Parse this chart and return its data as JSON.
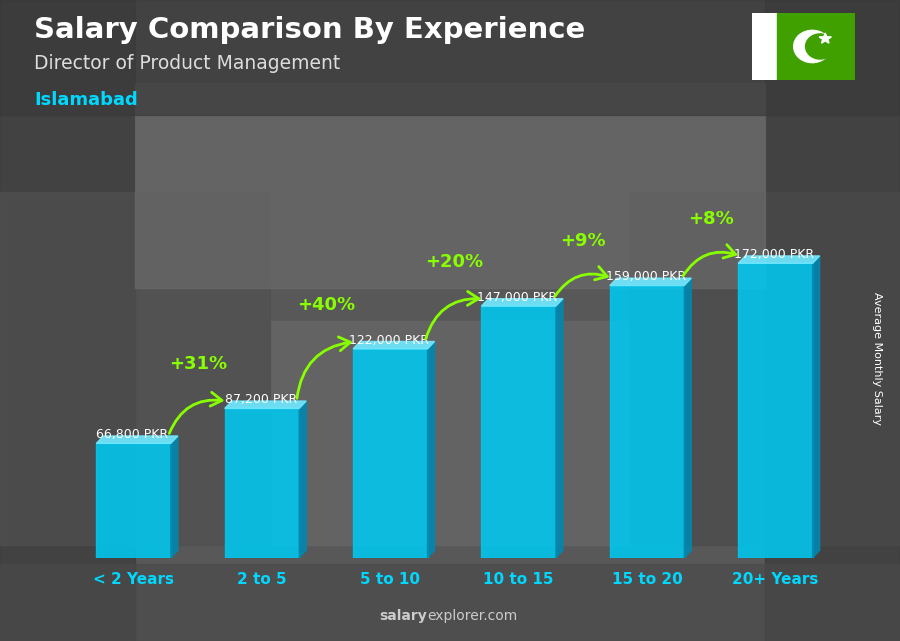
{
  "title": "Salary Comparison By Experience",
  "subtitle": "Director of Product Management",
  "city": "Islamabad",
  "ylabel": "Average Monthly Salary",
  "watermark_salary": "salary",
  "watermark_explorer": "explorer",
  "watermark_com": ".com",
  "categories": [
    "< 2 Years",
    "2 to 5",
    "5 to 10",
    "10 to 15",
    "15 to 20",
    "20+ Years"
  ],
  "values": [
    66800,
    87200,
    122000,
    147000,
    159000,
    172000
  ],
  "labels": [
    "66,800 PKR",
    "87,200 PKR",
    "122,000 PKR",
    "147,000 PKR",
    "159,000 PKR",
    "172,000 PKR"
  ],
  "pct_labels": [
    "+31%",
    "+40%",
    "+20%",
    "+9%",
    "+8%"
  ],
  "bar_color_face": "#00c8f0",
  "bar_color_top": "#70e8ff",
  "bar_color_side": "#0088b0",
  "bg_color": "#606060",
  "title_color": "#ffffff",
  "subtitle_color": "#dddddd",
  "city_color": "#00d8ff",
  "label_color": "#ffffff",
  "pct_color": "#88ff00",
  "xtick_color": "#00d8ff",
  "arrow_color": "#88ff00",
  "watermark_color": "#cccccc",
  "flag_green": "#3fa000",
  "flag_white": "#ffffff"
}
